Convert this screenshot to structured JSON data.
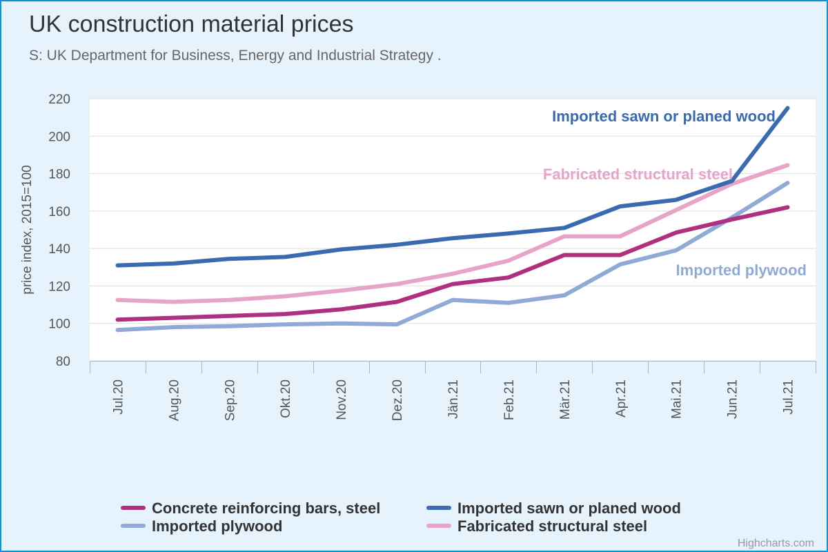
{
  "chart_data": {
    "type": "line",
    "title": "UK construction material prices",
    "subtitle": "S: UK Department for Business, Energy and Industrial Strategy .",
    "ylabel": "price index, 2015=100",
    "xlabel": "",
    "ylim": [
      80,
      220
    ],
    "yticks": [
      80,
      100,
      120,
      140,
      160,
      180,
      200,
      220
    ],
    "categories": [
      "Jul.20",
      "Aug.20",
      "Sep.20",
      "Okt.20",
      "Nov.20",
      "Dez.20",
      "Jän.21",
      "Feb.21",
      "Mär.21",
      "Apr.21",
      "Mai.21",
      "Jun.21",
      "Jul.21"
    ],
    "grid": true,
    "legend_position": "bottom",
    "series": [
      {
        "name": "Concrete reinforcing bars, steel",
        "color": "#b03080",
        "values": [
          102,
          103,
          104,
          105,
          107.5,
          111.5,
          121,
          124.5,
          136.5,
          136.5,
          148.5,
          155.5,
          162
        ],
        "end_label": ""
      },
      {
        "name": "Imported sawn or planed wood",
        "color": "#3a6aaf",
        "values": [
          131,
          132,
          134.5,
          135.5,
          139.5,
          142,
          145.5,
          148,
          151,
          162.5,
          166,
          176,
          215
        ],
        "end_label": "Imported sawn or planed wood"
      },
      {
        "name": "Imported plywood",
        "color": "#8faad6",
        "values": [
          96.5,
          98,
          98.5,
          99.5,
          100,
          99.5,
          112.5,
          111,
          115,
          131.5,
          139,
          156.5,
          175
        ],
        "end_label": "Imported plywood"
      },
      {
        "name": "Fabricated structural steel",
        "color": "#e8a4c8",
        "values": [
          112.5,
          111.5,
          112.5,
          114.5,
          117.5,
          121,
          126.5,
          133.5,
          146.5,
          146.5,
          160.5,
          174.5,
          184.5
        ],
        "end_label": "Fabricated structural steel"
      }
    ],
    "credits": "Highcharts.com"
  }
}
